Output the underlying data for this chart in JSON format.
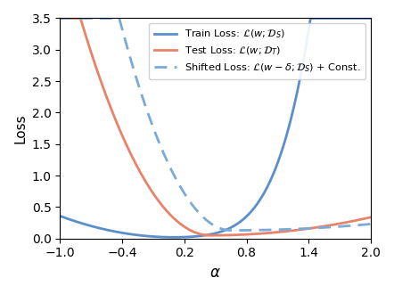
{
  "xlim": [
    -1.0,
    2.0
  ],
  "ylim": [
    0.0,
    3.5
  ],
  "xticks": [
    -1.0,
    -0.4,
    0.2,
    0.8,
    1.4,
    2.0
  ],
  "yticks": [
    0.0,
    0.5,
    1.0,
    1.5,
    2.0,
    2.5,
    3.0,
    3.5
  ],
  "xlabel": "$\\alpha$",
  "ylabel": "Loss",
  "train_color": "#5b8fcc",
  "test_color": "#e8836a",
  "shifted_color": "#7aaad8",
  "legend_labels": [
    "Train Loss: $\\mathcal{L}(w; \\mathcal{D}_S)$",
    "Test Loss: $\\mathcal{L}(w; \\mathcal{D}_T)$",
    "Shifted Loss: $\\mathcal{L}(w - \\delta; \\mathcal{D}_S)$ + Const."
  ],
  "figsize": [
    4.42,
    3.3
  ],
  "dpi": 100
}
